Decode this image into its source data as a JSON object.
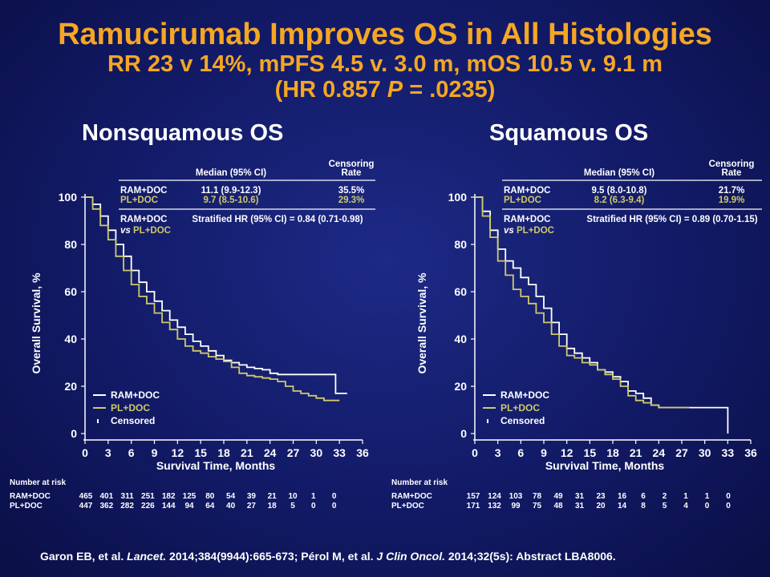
{
  "slide": {
    "title": "Ramucirumab Improves OS in All Histologies",
    "subtitle": "RR 23 v 14%, mPFS 4.5 v. 3.0 m, mOS 10.5 v. 9.1 m",
    "hr_prefix": "(HR 0.857 ",
    "hr_p": "P",
    "hr_suffix": " = .0235)",
    "citation": {
      "a": "Garon EB, et al. ",
      "a_journal": "Lancet.",
      "a_rest": " 2014;384(9944):665-673; Pérol M, et al. ",
      "b_journal": "J Clin Oncol.",
      "b_rest": " 2014;32(5s): Abstract LBA8006."
    }
  },
  "colors": {
    "ram": "#ffffff",
    "pl": "#cfc96a",
    "title": "#f5a623"
  },
  "chart_data": [
    {
      "type": "line",
      "title": "Nonsquamous OS",
      "xlabel": "Survival Time, Months",
      "ylabel": "Overall Survival, %",
      "xlim": [
        0,
        36
      ],
      "ylim": [
        0,
        100
      ],
      "x_ticks": [
        "0",
        "3",
        "6",
        "9",
        "12",
        "15",
        "18",
        "21",
        "24",
        "27",
        "30",
        "33",
        "36"
      ],
      "y_ticks": [
        "0",
        "20",
        "40",
        "60",
        "80",
        "100"
      ],
      "table": {
        "median_header": "Median (95% CI)",
        "censor_header_1": "Censoring",
        "censor_header_2": "Rate",
        "rows": [
          {
            "arm": "RAM+DOC",
            "median": "11.1 (9.9-12.3)",
            "censor": "35.5%"
          },
          {
            "arm": "PL+DOC",
            "median": "9.7 (8.5-10.6)",
            "censor": "29.3%"
          }
        ],
        "hr_arm": "RAM+DOC",
        "hr_vs": "vs",
        "hr_comp": "PL+DOC",
        "hr_text": "Stratified HR (95% CI) = 0.84 (0.71-0.98)"
      },
      "legend": {
        "items": [
          "RAM+DOC",
          "PL+DOC",
          "Censored"
        ],
        "placement": "bottom-left"
      },
      "series": [
        {
          "name": "RAM+DOC",
          "x": [
            0,
            1,
            2,
            3,
            4,
            5,
            6,
            7,
            8,
            9,
            10,
            11,
            12,
            13,
            14,
            15,
            16,
            17,
            18,
            19,
            20,
            21,
            22,
            23,
            24,
            25,
            26,
            27,
            28,
            29,
            30,
            31,
            32,
            32.5,
            33,
            34
          ],
          "y": [
            100,
            97,
            92,
            86,
            80,
            75,
            69,
            64,
            60,
            56,
            52,
            48,
            45,
            42,
            39,
            37,
            35,
            33,
            31,
            30,
            29,
            28,
            27.5,
            27,
            25.5,
            25,
            25,
            25,
            25,
            25,
            25,
            25,
            25,
            17,
            17,
            17
          ]
        },
        {
          "name": "PL+DOC",
          "x": [
            0,
            1,
            2,
            3,
            4,
            5,
            6,
            7,
            8,
            9,
            10,
            11,
            12,
            13,
            14,
            15,
            16,
            17,
            18,
            19,
            20,
            21,
            22,
            23,
            24,
            25,
            26,
            27,
            28,
            29,
            30,
            31,
            32,
            33
          ],
          "y": [
            100,
            95,
            88,
            82,
            75,
            69,
            63,
            58,
            55,
            51,
            47,
            44,
            40,
            37,
            35,
            34,
            32.5,
            31.5,
            30.5,
            28,
            25.5,
            24.5,
            24,
            23.5,
            23,
            22,
            20,
            18,
            17,
            16,
            15,
            14,
            14,
            14
          ]
        }
      ],
      "risk": {
        "label": "Number at risk",
        "rows": [
          {
            "arm": "RAM+DOC",
            "values": [
              "465",
              "401",
              "311",
              "251",
              "182",
              "125",
              "80",
              "54",
              "39",
              "21",
              "10",
              "1",
              "0"
            ]
          },
          {
            "arm": "PL+DOC",
            "values": [
              "447",
              "362",
              "282",
              "226",
              "144",
              "94",
              "64",
              "40",
              "27",
              "18",
              "5",
              "0",
              "0"
            ]
          }
        ]
      }
    },
    {
      "type": "line",
      "title": "Squamous OS",
      "xlabel": "Survival Time, Months",
      "ylabel": "Overall Survival, %",
      "xlim": [
        0,
        36
      ],
      "ylim": [
        0,
        100
      ],
      "x_ticks": [
        "0",
        "3",
        "6",
        "9",
        "12",
        "15",
        "18",
        "21",
        "24",
        "27",
        "30",
        "33",
        "36"
      ],
      "y_ticks": [
        "0",
        "20",
        "40",
        "60",
        "80",
        "100"
      ],
      "table": {
        "median_header": "Median (95% CI)",
        "censor_header_1": "Censoring",
        "censor_header_2": "Rate",
        "rows": [
          {
            "arm": "RAM+DOC",
            "median": "9.5 (8.0-10.8)",
            "censor": "21.7%"
          },
          {
            "arm": "PL+DOC",
            "median": "8.2 (6.3-9.4)",
            "censor": "19.9%"
          }
        ],
        "hr_arm": "RAM+DOC",
        "hr_vs": "vs",
        "hr_comp": "PL+DOC",
        "hr_text": "Stratified HR (95% CI) = 0.89 (0.70-1.15)"
      },
      "legend": {
        "items": [
          "RAM+DOC",
          "PL+DOC",
          "Censored"
        ],
        "placement": "bottom-left"
      },
      "series": [
        {
          "name": "RAM+DOC",
          "x": [
            0,
            1,
            2,
            3,
            4,
            5,
            6,
            7,
            8,
            9,
            10,
            11,
            12,
            13,
            14,
            15,
            16,
            17,
            18,
            19,
            20,
            21,
            22,
            23,
            24,
            25,
            30,
            32,
            33,
            33.01
          ],
          "y": [
            100,
            94,
            86,
            78,
            73,
            70,
            66,
            63,
            58,
            53,
            47,
            42,
            36,
            34,
            32,
            30,
            27,
            26,
            24,
            22,
            18,
            17,
            15,
            12,
            11,
            11,
            11,
            11,
            11,
            0
          ]
        },
        {
          "name": "PL+DOC",
          "x": [
            0,
            1,
            2,
            3,
            4,
            5,
            6,
            7,
            8,
            9,
            10,
            11,
            12,
            13,
            14,
            15,
            16,
            17,
            18,
            19,
            20,
            21,
            22,
            23,
            24,
            25,
            28
          ],
          "y": [
            100,
            92,
            83,
            73,
            67,
            61,
            58,
            55,
            51,
            47,
            42,
            37,
            33,
            32,
            30,
            29,
            27,
            25,
            23,
            20,
            16,
            14,
            13,
            12,
            11,
            11,
            11
          ]
        }
      ],
      "risk": {
        "label": "Number at risk",
        "rows": [
          {
            "arm": "RAM+DOC",
            "values": [
              "157",
              "124",
              "103",
              "78",
              "49",
              "31",
              "23",
              "16",
              "6",
              "2",
              "1",
              "1",
              "0"
            ]
          },
          {
            "arm": "PL+DOC",
            "values": [
              "171",
              "132",
              "99",
              "75",
              "48",
              "31",
              "20",
              "14",
              "8",
              "5",
              "4",
              "0",
              "0"
            ]
          }
        ]
      }
    }
  ]
}
